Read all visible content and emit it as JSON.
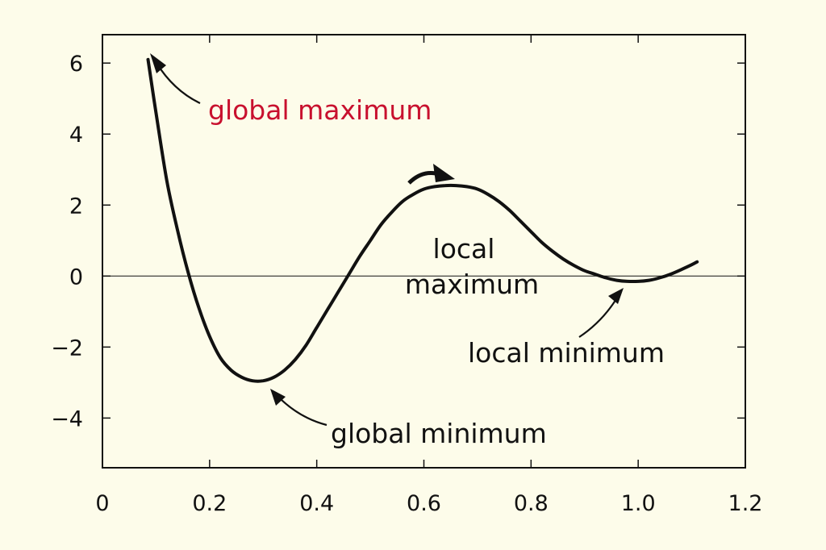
{
  "chart_data": {
    "type": "line",
    "title": "",
    "xlabel": "",
    "ylabel": "",
    "xlim": [
      0,
      1.2
    ],
    "ylim": [
      -5.4,
      6.8
    ],
    "grid": false,
    "x_ticks": [
      0,
      0.2,
      0.4,
      0.6,
      0.8,
      1.0,
      1.2
    ],
    "x_tick_labels": [
      "0",
      "0.2",
      "0.4",
      "0.6",
      "0.8",
      "1.0",
      "1.2"
    ],
    "y_ticks": [
      6,
      4,
      2,
      0,
      -2,
      -4
    ],
    "y_tick_labels": [
      "6",
      "4",
      "2",
      "0",
      "−2",
      "−4"
    ],
    "reference_line_y": 0,
    "series": [
      {
        "color": "#111111",
        "x": [
          0.085,
          0.1,
          0.12,
          0.14,
          0.16,
          0.18,
          0.2,
          0.22,
          0.24,
          0.26,
          0.28,
          0.3,
          0.32,
          0.34,
          0.36,
          0.38,
          0.4,
          0.42,
          0.44,
          0.46,
          0.48,
          0.5,
          0.52,
          0.54,
          0.56,
          0.58,
          0.6,
          0.62,
          0.64,
          0.66,
          0.68,
          0.7,
          0.72,
          0.74,
          0.76,
          0.78,
          0.8,
          0.82,
          0.84,
          0.86,
          0.88,
          0.9,
          0.92,
          0.94,
          0.96,
          0.98,
          1.0,
          1.02,
          1.04,
          1.06,
          1.08,
          1.1,
          1.11
        ],
        "y": [
          6.1,
          4.6,
          2.7,
          1.3,
          0.1,
          -0.9,
          -1.7,
          -2.3,
          -2.65,
          -2.85,
          -2.95,
          -2.95,
          -2.85,
          -2.65,
          -2.35,
          -1.95,
          -1.45,
          -0.95,
          -0.45,
          0.05,
          0.55,
          1.0,
          1.45,
          1.8,
          2.1,
          2.3,
          2.45,
          2.52,
          2.55,
          2.55,
          2.52,
          2.45,
          2.3,
          2.1,
          1.85,
          1.55,
          1.25,
          0.95,
          0.7,
          0.48,
          0.3,
          0.15,
          0.05,
          -0.05,
          -0.12,
          -0.15,
          -0.15,
          -0.12,
          -0.05,
          0.05,
          0.18,
          0.32,
          0.4
        ]
      }
    ],
    "annotations": [
      {
        "text": "global maximum",
        "color": "#c8102e",
        "target": [
          0.085,
          6.1
        ]
      },
      {
        "text": "local",
        "color": "#111111"
      },
      {
        "text": "maximum",
        "color": "#111111",
        "target": [
          0.67,
          2.55
        ]
      },
      {
        "text": "global minimum",
        "color": "#111111",
        "target": [
          0.3,
          -2.95
        ]
      },
      {
        "text": "local minimum",
        "color": "#111111",
        "target": [
          1.0,
          -0.15
        ]
      }
    ]
  }
}
